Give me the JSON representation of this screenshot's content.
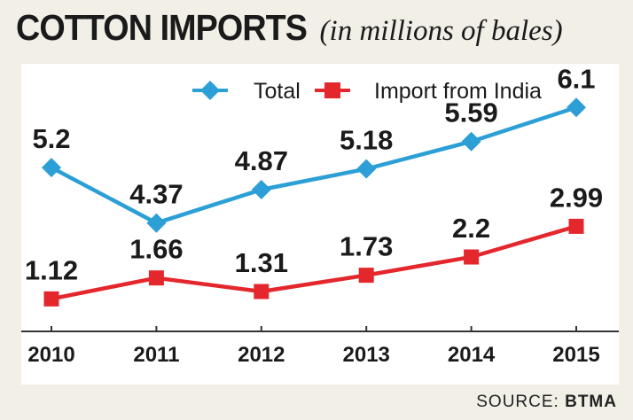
{
  "title": {
    "main": "COTTON IMPORTS",
    "sub": "(in millions of bales)"
  },
  "source": {
    "prefix": "SOURCE:",
    "name": "BTMA"
  },
  "colors": {
    "total": "#2b9fd6",
    "india": "#e4272d",
    "axis": "#333333",
    "panel": "#ffffff",
    "background": "#f1efe6"
  },
  "chart_data": {
    "type": "line",
    "categories": [
      "2010",
      "2011",
      "2012",
      "2013",
      "2014",
      "2015"
    ],
    "series": [
      {
        "name": "Total",
        "values": [
          5.2,
          4.37,
          4.87,
          5.18,
          5.59,
          6.1
        ],
        "labels": [
          "5.2",
          "4.37",
          "4.87",
          "5.18",
          "5.59",
          "6.1"
        ],
        "marker": "diamond",
        "color": "#2b9fd6"
      },
      {
        "name": "Import from India",
        "values": [
          1.12,
          1.66,
          1.31,
          1.73,
          2.2,
          2.99
        ],
        "labels": [
          "1.12",
          "1.66",
          "1.31",
          "1.73",
          "2.2",
          "2.99"
        ],
        "marker": "square",
        "color": "#e4272d"
      }
    ],
    "legend_position": "top-center",
    "grid": false
  }
}
